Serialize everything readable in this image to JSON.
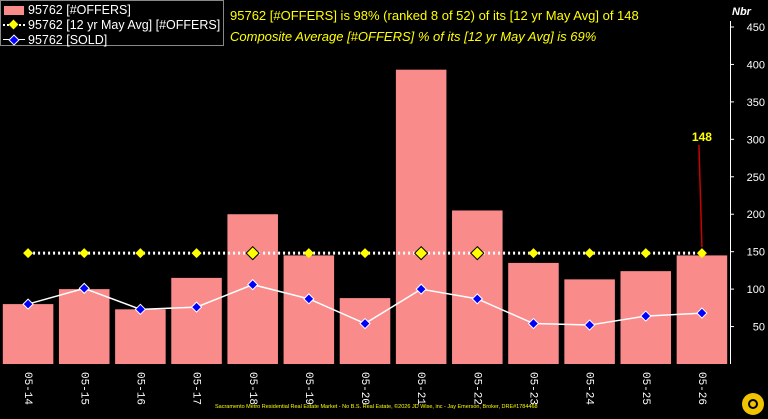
{
  "chart_data": {
    "type": "bar",
    "categories": [
      "05-14",
      "05-15",
      "05-16",
      "05-17",
      "05-18",
      "05-19",
      "05-20",
      "05-21",
      "05-22",
      "05-23",
      "05-24",
      "05-25",
      "05-26"
    ],
    "series": [
      {
        "name": "95762 [#OFFERS]",
        "kind": "bar",
        "color": "#f98b8b",
        "values": [
          80,
          100,
          73,
          115,
          200,
          145,
          88,
          393,
          205,
          135,
          113,
          124,
          145
        ]
      },
      {
        "name": "95762 [12 yr May Avg] [#OFFERS]",
        "kind": "line",
        "color": "#ffff00",
        "line_color": "#ffffff",
        "style": "dotted",
        "values": [
          148,
          148,
          148,
          148,
          148,
          148,
          148,
          148,
          148,
          148,
          148,
          148,
          148
        ]
      },
      {
        "name": "95762 [SOLD]",
        "kind": "line",
        "color": "#0000ff",
        "line_color": "#ffffff",
        "style": "solid",
        "values": [
          80,
          101,
          73,
          76,
          106,
          87,
          54,
          100,
          87,
          54,
          52,
          64,
          68
        ]
      }
    ],
    "highlighted_points": [
      4,
      7,
      8
    ],
    "annotation_value": "148",
    "ylabel": "Nbr",
    "ylim": [
      0,
      450
    ],
    "yticks": [
      50,
      100,
      150,
      200,
      250,
      300,
      350,
      400,
      450
    ],
    "grid": false,
    "legend_position": "top-left",
    "annotations": [
      "95762 [#OFFERS] is 98% (ranked 8 of 52) of its [12 yr May Avg] of 148",
      "Composite Average [#OFFERS] % of its [12 yr May Avg] is 69%"
    ],
    "footer": "Sacramento Metro Residential Real Estate Market - No B.S. Real Estate, ©2026 JD Wise, inc - Jay Emerson, Broker, DRE#1784468"
  },
  "colors": {
    "background": "#000000",
    "bar": "#f98b8b",
    "avg_marker": "#ffff00",
    "sold_marker": "#0000ff",
    "annotation_text": "#ffff00",
    "annotation_line": "#cc0000"
  }
}
